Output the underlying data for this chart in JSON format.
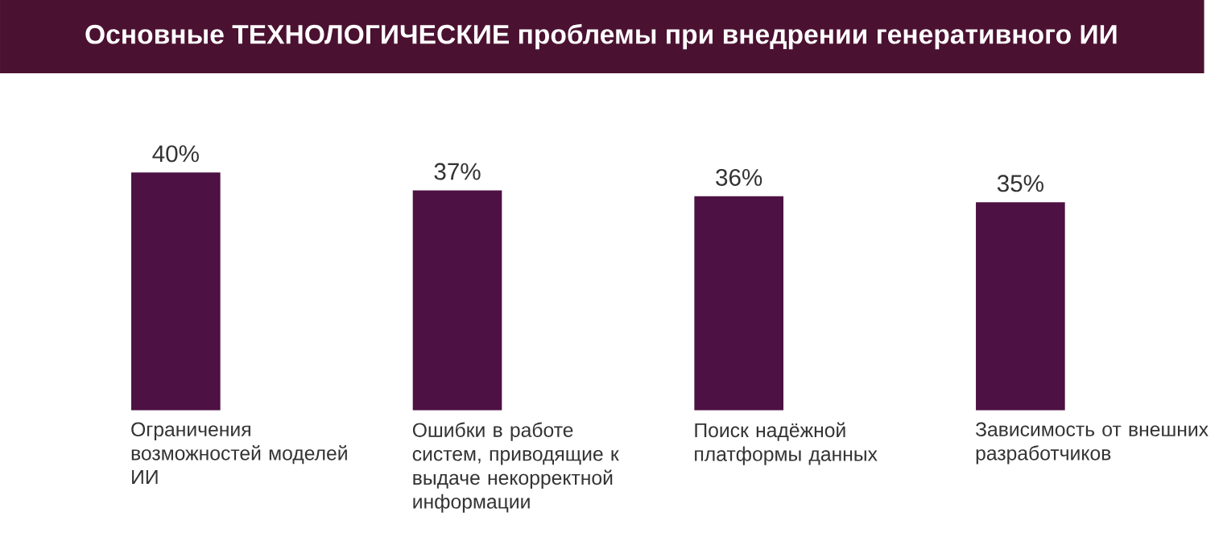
{
  "chart_data": {
    "type": "bar",
    "title": "Основные ТЕХНОЛОГИЧЕСКИЕ проблемы при внедрении генеративного ИИ",
    "categories": [
      "Ограничения возможностей моделей ИИ",
      "Ошибки в работе систем, приводящие к выдаче некорректной информации",
      "Поиск надёжной платформы данных",
      "Зависимость от внешних разработчиков"
    ],
    "values": [
      40,
      37,
      36,
      35
    ],
    "value_labels": [
      "40%",
      "37%",
      "36%",
      "35%"
    ],
    "color": "#4d1143"
  }
}
